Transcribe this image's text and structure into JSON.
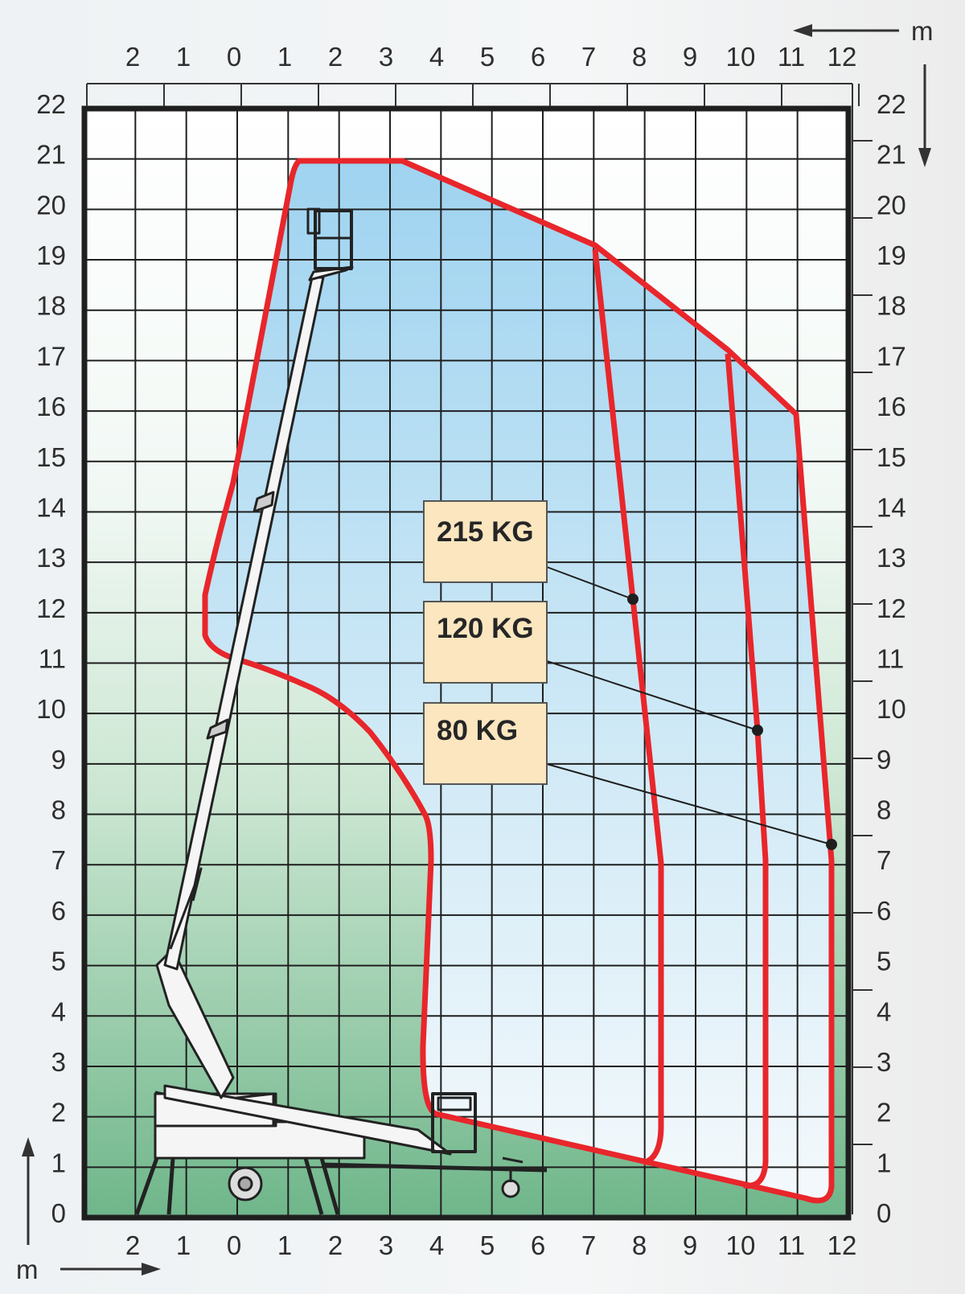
{
  "axes": {
    "top_x_labels": [
      "2",
      "1",
      "0",
      "1",
      "2",
      "3",
      "4",
      "5",
      "6",
      "7",
      "8",
      "9",
      "10",
      "11",
      "12"
    ],
    "bottom_x_labels": [
      "2",
      "1",
      "0",
      "1",
      "2",
      "3",
      "4",
      "5",
      "6",
      "7",
      "8",
      "9",
      "10",
      "11",
      "12"
    ],
    "left_y_labels": [
      "22",
      "21",
      "20",
      "19",
      "18",
      "17",
      "16",
      "15",
      "14",
      "13",
      "12",
      "11",
      "10",
      "9",
      "8",
      "7",
      "6",
      "5",
      "4",
      "3",
      "2",
      "1",
      "0"
    ],
    "right_y_labels": [
      "22",
      "21",
      "20",
      "19",
      "18",
      "17",
      "16",
      "15",
      "14",
      "13",
      "12",
      "11",
      "10",
      "9",
      "8",
      "7",
      "6",
      "5",
      "4",
      "3",
      "2",
      "1",
      "0"
    ],
    "unit_top": "m",
    "unit_bottom": "m"
  },
  "load_zones": [
    {
      "label": "215 KG",
      "max_outreach_m": 8.0
    },
    {
      "label": "120 KG",
      "max_outreach_m": 10.3
    },
    {
      "label": "80 KG",
      "max_outreach_m": 11.8
    }
  ],
  "working_envelope": {
    "max_height_m": 21,
    "max_outreach_m": 11.8
  },
  "colors": {
    "envelope_line": "#e8262b",
    "label_box": "#fbe6bf",
    "grid": "#1f1f1f",
    "sky_fill": "#a9d8f0",
    "ground_fill": "#72b88c"
  },
  "icons": [
    "aerial-lift-machine-icon",
    "arrow-right-icon",
    "arrow-up-icon",
    "arrow-left-icon",
    "arrow-down-icon"
  ]
}
